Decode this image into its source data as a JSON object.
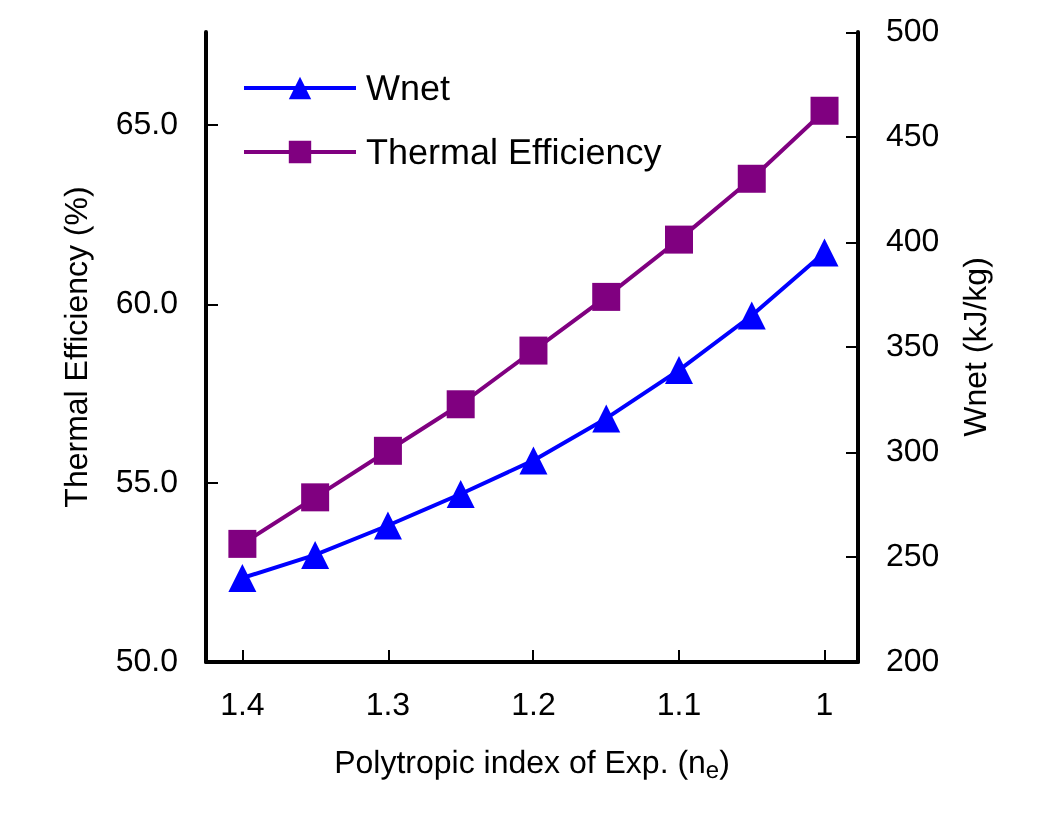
{
  "chart_data": {
    "type": "line",
    "xlabel": "Polytropic index of Exp. (n$_{e}$)",
    "ylabel": "Thermal Efficiency (%)",
    "y2label": "Wnet (kJ/kg)",
    "x": [
      1.4,
      1.35,
      1.3,
      1.25,
      1.2,
      1.15,
      1.1,
      1.05,
      1.0
    ],
    "series": [
      {
        "name": "Wnet",
        "color": "#0000ff",
        "axis": "y2",
        "marker": "triangle",
        "values": [
          240,
          251,
          265,
          280,
          296,
          316,
          339,
          365,
          395
        ]
      },
      {
        "name": "Thermal Efficiency",
        "color": "#800080",
        "marker": "square",
        "values": [
          53.3,
          54.6,
          55.9,
          57.2,
          58.7,
          60.2,
          61.8,
          63.5,
          65.4
        ]
      }
    ],
    "xlim": [
      1.425,
      0.977
    ],
    "xticks": [
      1.4,
      1.3,
      1.2,
      1.1,
      1
    ],
    "ylim": [
      50,
      67.6
    ],
    "yticks": [
      {
        "value": 50,
        "label": "50.0"
      },
      {
        "value": 55,
        "label": "55.0"
      },
      {
        "value": 60,
        "label": "60.0"
      },
      {
        "value": 65,
        "label": "65.0"
      }
    ],
    "y2lim": [
      200,
      500
    ],
    "y2ticks": [
      200,
      250,
      300,
      350,
      400,
      450,
      500
    ],
    "grid": false,
    "legend": "top left",
    "line_style": "solid"
  }
}
